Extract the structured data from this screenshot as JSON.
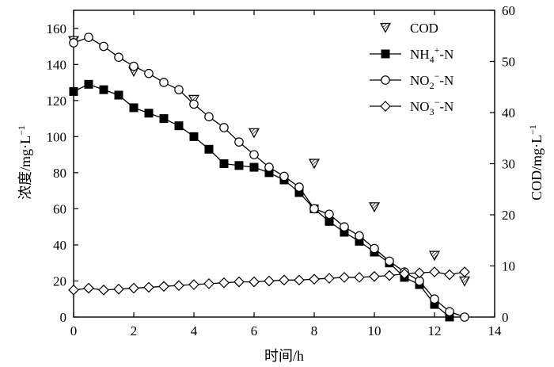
{
  "chart_data": {
    "type": "line",
    "xlabel": "时间/h",
    "ylabel_left": "浓度/mg·L",
    "ylabel_left_sup": "−1",
    "ylabel_right": "COD/mg·L",
    "ylabel_right_sup": "−1",
    "xlim": [
      0,
      14
    ],
    "ylim_left": [
      0,
      170
    ],
    "ylim_right": [
      0,
      60
    ],
    "x_ticks": [
      "0",
      "2",
      "4",
      "6",
      "8",
      "10",
      "12",
      "14"
    ],
    "y_left_ticks": [
      "0",
      "20",
      "40",
      "60",
      "80",
      "100",
      "120",
      "140",
      "160"
    ],
    "y_right_ticks": [
      "0",
      "10",
      "20",
      "30",
      "40",
      "50",
      "60"
    ],
    "legend_placement": "top-right",
    "grid": false,
    "series": [
      {
        "name": "COD",
        "legend_main": "COD",
        "axis": "right",
        "marker": "triangle-down-hatched",
        "line": false,
        "x": [
          0,
          2,
          4,
          6,
          8,
          10,
          12,
          13
        ],
        "y": [
          54,
          48,
          42.5,
          36,
          30,
          21.5,
          12,
          7
        ]
      },
      {
        "name": "NH4+-N",
        "legend_main": "NH",
        "legend_sub": "4",
        "legend_sup": "+",
        "legend_tail": "-N",
        "axis": "left",
        "marker": "square-filled",
        "line": true,
        "x": [
          0,
          0.5,
          1,
          1.5,
          2,
          2.5,
          3,
          3.5,
          4,
          4.5,
          5,
          5.5,
          6,
          6.5,
          7,
          7.5,
          8,
          8.5,
          9,
          9.5,
          10,
          10.5,
          11,
          11.5,
          12,
          12.5
        ],
        "y": [
          125,
          129,
          126,
          123,
          116,
          113,
          110,
          106,
          100,
          93,
          85,
          84,
          83,
          80,
          76,
          69,
          60,
          53,
          47,
          42,
          36,
          30,
          22,
          18,
          7,
          0
        ]
      },
      {
        "name": "NO2−-N",
        "legend_main": "NO",
        "legend_sub": "2",
        "legend_sup": "−",
        "legend_tail": "-N",
        "axis": "left",
        "marker": "circle-open",
        "line": true,
        "x": [
          0,
          0.5,
          1,
          1.5,
          2,
          2.5,
          3,
          3.5,
          4,
          4.5,
          5,
          5.5,
          6,
          6.5,
          7,
          7.5,
          8,
          8.5,
          9,
          9.5,
          10,
          10.5,
          11,
          11.5,
          12,
          12.5,
          13
        ],
        "y": [
          152,
          155,
          150,
          144,
          139,
          135,
          130,
          126,
          118,
          111,
          105,
          97,
          90,
          83,
          78,
          72,
          60,
          57,
          50,
          45,
          38,
          31,
          25,
          20,
          10,
          3,
          0
        ]
      },
      {
        "name": "NO3−-N",
        "legend_main": "NO",
        "legend_sub": "3",
        "legend_sup": "−",
        "legend_tail": "-N",
        "axis": "left",
        "marker": "diamond-open",
        "line": true,
        "x": [
          0,
          0.5,
          1,
          1.5,
          2,
          2.5,
          3,
          3.5,
          4,
          4.5,
          5,
          5.5,
          6,
          6.5,
          7,
          7.5,
          8,
          8.5,
          9,
          9.5,
          10,
          10.5,
          11,
          11.5,
          12,
          12.5,
          13
        ],
        "y": [
          15,
          16,
          15,
          15.5,
          16,
          16.5,
          17,
          17.5,
          18,
          18.5,
          19,
          19.5,
          19.5,
          20,
          20.5,
          20.5,
          21,
          21.5,
          22,
          22,
          22.5,
          23,
          24,
          24.5,
          25,
          23.5,
          25
        ]
      }
    ]
  }
}
